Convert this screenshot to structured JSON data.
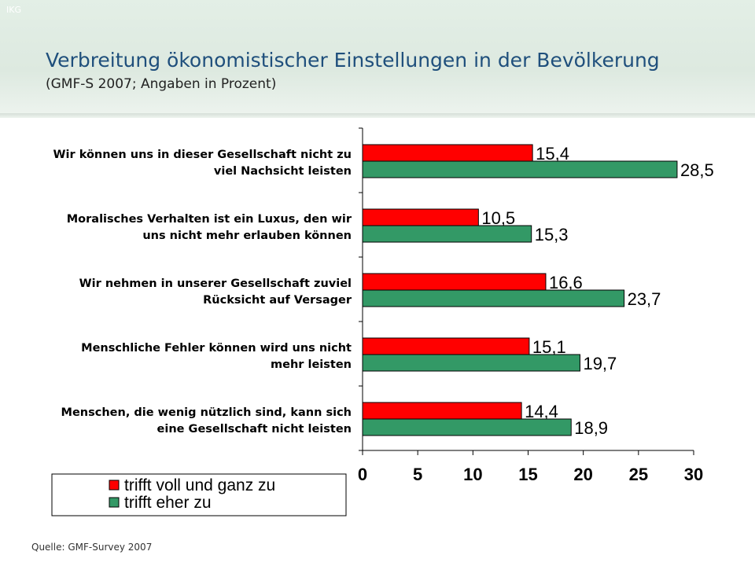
{
  "header": {
    "corner_tag": "IKG",
    "title": "Verbreitung ökonomistischer Einstellungen in der Bevölkerung",
    "subtitle": "(GMF-S 2007; Angaben in Prozent)"
  },
  "footer": {
    "source": "Quelle: GMF-Survey 2007"
  },
  "chart_data": {
    "type": "bar",
    "orientation": "horizontal",
    "categories": [
      [
        "Wir können uns in dieser Gesellschaft nicht zu",
        "viel Nachsicht leisten"
      ],
      [
        "Moralisches Verhalten ist ein Luxus, den wir",
        "uns nicht mehr erlauben können"
      ],
      [
        "Wir nehmen in unserer Gesellschaft zuviel",
        "Rücksicht auf Versager"
      ],
      [
        "Menschliche Fehler können wird uns nicht",
        "mehr leisten"
      ],
      [
        "Menschen, die wenig nützlich sind, kann sich",
        "eine Gesellschaft nicht leisten"
      ]
    ],
    "series": [
      {
        "name": "trifft voll und ganz zu",
        "color": "#ff0000",
        "values": [
          15.4,
          10.5,
          16.6,
          15.1,
          14.4
        ],
        "labels": [
          "15,4",
          "10,5",
          "16,6",
          "15,1",
          "14,4"
        ]
      },
      {
        "name": "trifft eher zu",
        "color": "#339966",
        "values": [
          28.5,
          15.3,
          23.7,
          19.7,
          18.9
        ],
        "labels": [
          "28,5",
          "15,3",
          "23,7",
          "19,7",
          "18,9"
        ]
      }
    ],
    "xlim": [
      0,
      30
    ],
    "xticks": [
      0,
      5,
      10,
      15,
      20,
      25,
      30
    ],
    "xlabel": "",
    "ylabel": "",
    "grid": false,
    "legend_position": "bottom-left"
  }
}
